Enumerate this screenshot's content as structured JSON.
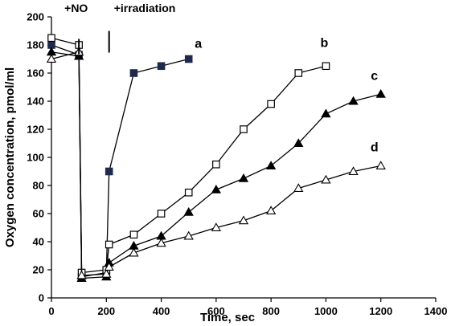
{
  "chart_data": {
    "type": "line",
    "title": "",
    "xlabel": "Time, sec",
    "ylabel": "Oxygen concentration, pmol/ml",
    "xlim": [
      0,
      1400
    ],
    "ylim": [
      0,
      200
    ],
    "x_ticks": [
      "0",
      "200",
      "400",
      "600",
      "800",
      "1000",
      "1200",
      "1400"
    ],
    "y_ticks": [
      "0",
      "20",
      "40",
      "60",
      "80",
      "100",
      "120",
      "140",
      "160",
      "180",
      "200"
    ],
    "grid": false,
    "annotations": [
      {
        "text": "+NO",
        "x": 100,
        "arrow_top": 190,
        "arrow_bottom": 178
      },
      {
        "text": "+irradiation",
        "x": 210,
        "arrow_top": 190,
        "arrow_bottom": 178
      }
    ],
    "series": [
      {
        "name": "a",
        "marker": "filled-square",
        "color": "#1f2a4a",
        "x": [
          0,
          100,
          110,
          200,
          210,
          300,
          400,
          500
        ],
        "y": [
          180,
          173,
          15,
          18,
          90,
          160,
          165,
          170
        ]
      },
      {
        "name": "b",
        "marker": "open-square",
        "color": "#000000",
        "x": [
          0,
          100,
          110,
          200,
          210,
          300,
          400,
          500,
          600,
          700,
          800,
          900,
          1000
        ],
        "y": [
          185,
          180,
          18,
          20,
          38,
          45,
          60,
          75,
          95,
          120,
          138,
          160,
          165
        ]
      },
      {
        "name": "c",
        "marker": "filled-triangle",
        "color": "#000000",
        "x": [
          0,
          100,
          110,
          200,
          210,
          300,
          400,
          500,
          600,
          700,
          800,
          900,
          1000,
          1100,
          1200
        ],
        "y": [
          175,
          172,
          14,
          15,
          25,
          37,
          44,
          61,
          77,
          85,
          94,
          110,
          131,
          140,
          145
        ]
      },
      {
        "name": "d",
        "marker": "open-triangle",
        "color": "#000000",
        "x": [
          0,
          100,
          110,
          200,
          210,
          300,
          400,
          500,
          600,
          700,
          800,
          900,
          1000,
          1100,
          1200
        ],
        "y": [
          170,
          175,
          16,
          17,
          22,
          32,
          39,
          44,
          50,
          55,
          62,
          78,
          84,
          90,
          94
        ]
      }
    ]
  }
}
